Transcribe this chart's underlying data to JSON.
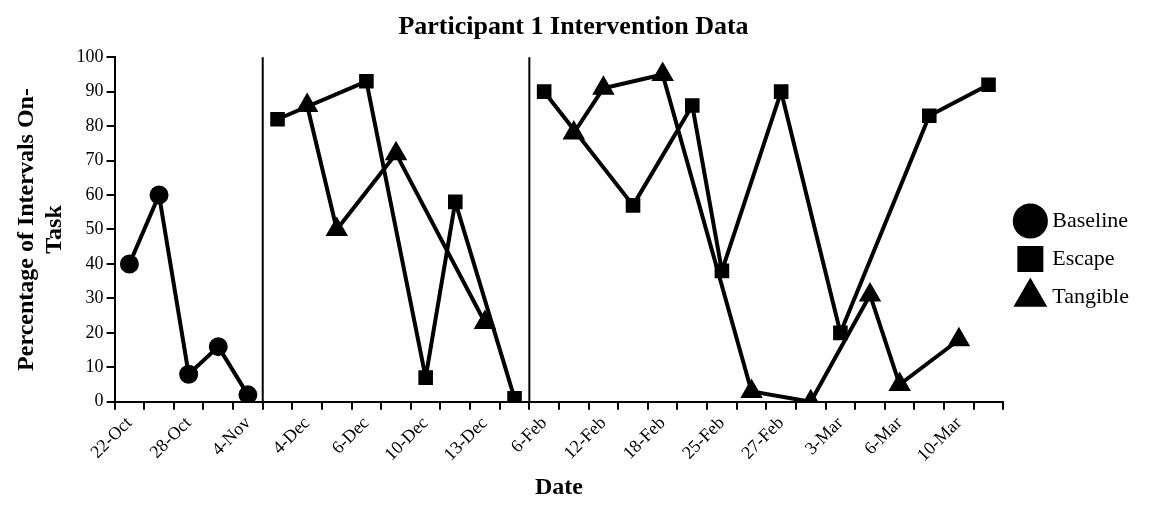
{
  "chart_data": {
    "type": "line",
    "title": "Participant 1 Intervention Data",
    "xlabel": "Date",
    "ylabel": "Percentage of Intervals On-Task",
    "categories": [
      "22-Oct",
      null,
      "28-Oct",
      null,
      "4-Nov",
      null,
      "4-Dec",
      null,
      "6-Dec",
      null,
      "10-Dec",
      null,
      "13-Dec",
      null,
      "6-Feb",
      null,
      "12-Feb",
      null,
      "18-Feb",
      null,
      "25-Feb",
      null,
      "27-Feb",
      null,
      "3-Mar",
      null,
      "6-Mar",
      null,
      "10-Mar",
      null
    ],
    "series": [
      {
        "name": "Baseline",
        "color": "#000000",
        "marker": "circle",
        "values": [
          40,
          60,
          8,
          16,
          2,
          null,
          null,
          null,
          null,
          null,
          null,
          null,
          null,
          null,
          null,
          null,
          null,
          null,
          null,
          null,
          null,
          null,
          null,
          null,
          null,
          null,
          null,
          null,
          null,
          null
        ]
      },
      {
        "name": "Escape",
        "color": "#000000",
        "marker": "square",
        "values": [
          null,
          null,
          null,
          null,
          null,
          82,
          null,
          null,
          93,
          null,
          7,
          58,
          null,
          1,
          null,
          null,
          null,
          null,
          null,
          null,
          null,
          null,
          null,
          null,
          null,
          null,
          null,
          null,
          null,
          null
        ]
      },
      {
        "name": "Tangible",
        "color": "#000000",
        "marker": "triangle",
        "values": [
          null,
          null,
          null,
          null,
          null,
          null,
          86,
          50,
          null,
          72,
          null,
          null,
          23,
          null,
          null,
          null,
          null,
          null,
          null,
          null,
          null,
          null,
          null,
          null,
          null,
          null,
          null,
          null,
          null,
          null
        ]
      },
      {
        "color": "#000000",
        "marker": "square",
        "values": [
          null,
          null,
          null,
          null,
          null,
          null,
          null,
          null,
          null,
          null,
          null,
          null,
          null,
          null,
          90,
          null,
          null,
          57,
          null,
          86,
          38,
          null,
          90,
          null,
          20,
          null,
          null,
          83,
          null,
          92
        ]
      },
      {
        "color": "#000000",
        "marker": "triangle",
        "values": [
          null,
          null,
          null,
          null,
          null,
          null,
          null,
          null,
          null,
          null,
          null,
          null,
          null,
          null,
          null,
          78,
          91,
          null,
          95,
          null,
          null,
          3,
          null,
          0,
          null,
          31,
          5,
          null,
          18,
          null
        ]
      }
    ],
    "ylim": [
      0,
      100
    ],
    "yticks": [
      0,
      10,
      20,
      30,
      40,
      50,
      60,
      70,
      80,
      90,
      100
    ],
    "grid": false,
    "legend": "right",
    "line_style": "solid"
  }
}
